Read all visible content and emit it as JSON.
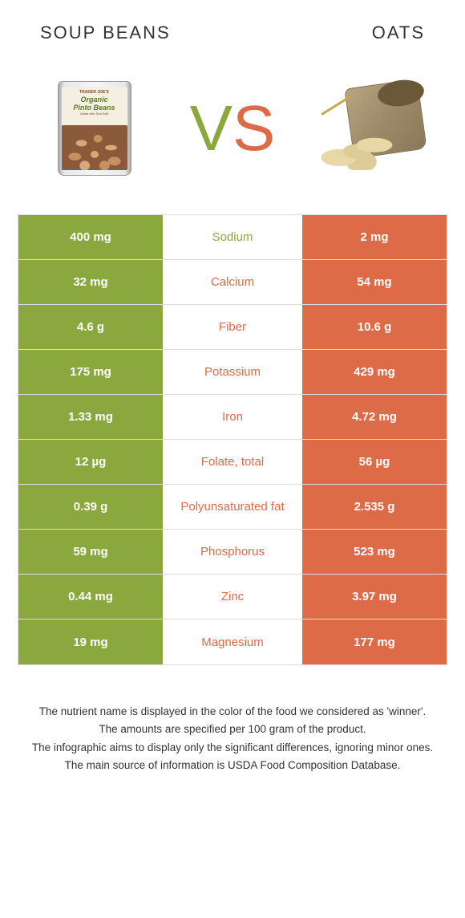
{
  "colors": {
    "green": "#8aa83e",
    "orange": "#dd6b48",
    "text_dark": "#333333"
  },
  "header": {
    "left": "SOUP BEANS",
    "right": "OATS"
  },
  "vs": {
    "v": "V",
    "s": "S"
  },
  "rows": [
    {
      "left": "400 mg",
      "mid": "Sodium",
      "winner": "left",
      "right": "2 mg"
    },
    {
      "left": "32 mg",
      "mid": "Calcium",
      "winner": "right",
      "right": "54 mg"
    },
    {
      "left": "4.6 g",
      "mid": "Fiber",
      "winner": "right",
      "right": "10.6 g"
    },
    {
      "left": "175 mg",
      "mid": "Potassium",
      "winner": "right",
      "right": "429 mg"
    },
    {
      "left": "1.33 mg",
      "mid": "Iron",
      "winner": "right",
      "right": "4.72 mg"
    },
    {
      "left": "12 µg",
      "mid": "Folate, total",
      "winner": "right",
      "right": "56 µg"
    },
    {
      "left": "0.39 g",
      "mid": "Polyunsaturated fat",
      "winner": "right",
      "right": "2.535 g"
    },
    {
      "left": "59 mg",
      "mid": "Phosphorus",
      "winner": "right",
      "right": "523 mg"
    },
    {
      "left": "0.44 mg",
      "mid": "Zinc",
      "winner": "right",
      "right": "3.97 mg"
    },
    {
      "left": "19 mg",
      "mid": "Magnesium",
      "winner": "right",
      "right": "177 mg"
    }
  ],
  "can": {
    "brand": "TRADER JOE'S",
    "line1": "Organic",
    "line2": "Pinto Beans",
    "sub": "Made with Sea Salt"
  },
  "footer": {
    "l1": "The nutrient name is displayed in the color of the food we considered as 'winner'.",
    "l2": "The amounts are specified per 100 gram of the product.",
    "l3": "The infographic aims to display only the significant differences, ignoring minor ones.",
    "l4": "The main source of information is USDA Food Composition Database."
  }
}
